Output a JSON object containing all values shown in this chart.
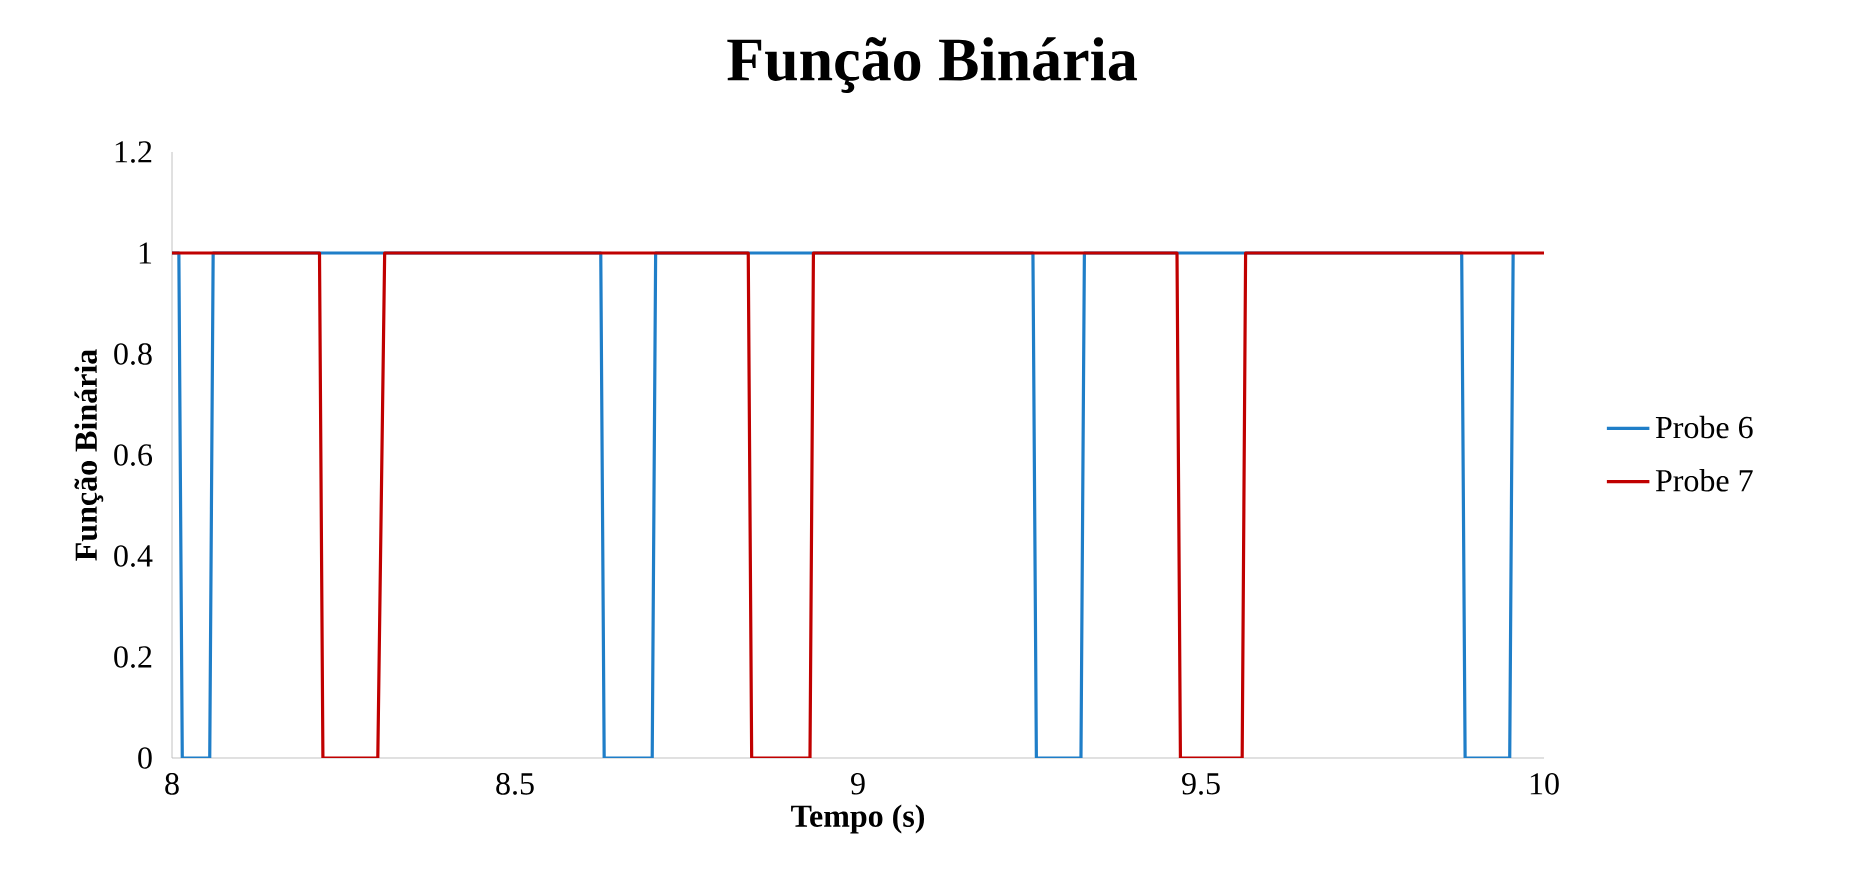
{
  "chart_data": {
    "type": "line",
    "title": "Função Binária",
    "xlabel": "Tempo (s)",
    "ylabel": "Função Binária",
    "xlim": [
      8,
      10
    ],
    "xticks": [
      8,
      8.5,
      9,
      9.5,
      10
    ],
    "ylim": [
      0,
      1.2
    ],
    "yticks": [
      0,
      0.2,
      0.4,
      0.6,
      0.8,
      1,
      1.2
    ],
    "legend": "right",
    "grid": false,
    "marker": "none",
    "line_style": "solid",
    "series": [
      {
        "name": "Probe 6",
        "color": "#1f7ec8",
        "x": [
          8,
          8.01,
          8.015,
          8.055,
          8.06,
          8.625,
          8.63,
          8.7,
          8.705,
          9.255,
          9.26,
          9.325,
          9.33,
          9.88,
          9.885,
          9.95,
          9.955
        ],
        "values": [
          1,
          1,
          0,
          0,
          1,
          1,
          0,
          0,
          1,
          1,
          0,
          0,
          1,
          1,
          0,
          0,
          1
        ]
      },
      {
        "name": "Probe 7",
        "color": "#c00000",
        "x": [
          8,
          8.215,
          8.22,
          8.3,
          8.31,
          8.84,
          8.845,
          8.93,
          8.935,
          9.465,
          9.47,
          9.56,
          9.565,
          10
        ],
        "values": [
          1,
          1,
          0,
          0,
          1,
          1,
          0,
          0,
          1,
          1,
          0,
          0,
          1,
          1
        ]
      }
    ]
  }
}
